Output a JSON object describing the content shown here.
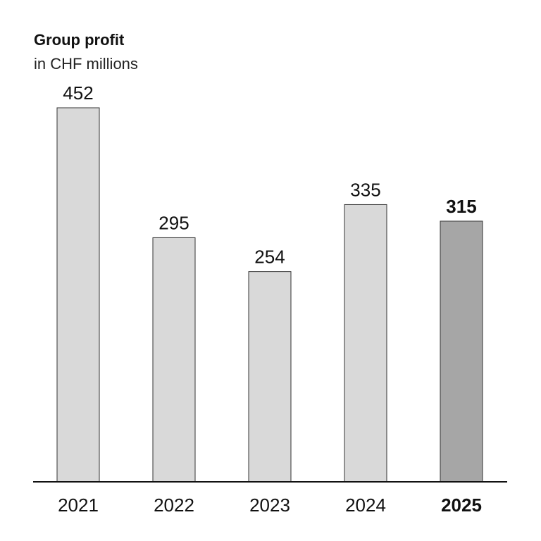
{
  "chart_data": {
    "type": "bar",
    "title": "Group profit",
    "subtitle": "in CHF millions",
    "categories": [
      "2021",
      "2022",
      "2023",
      "2024",
      "2025"
    ],
    "values": [
      452,
      295,
      254,
      335,
      315
    ],
    "highlight_index": 4,
    "ylim": [
      0,
      452
    ],
    "grid": false,
    "colors": {
      "bar": "#d9d9d9",
      "bar_highlight": "#a6a6a6",
      "bar_stroke": "#333333",
      "axis": "#111111"
    }
  }
}
